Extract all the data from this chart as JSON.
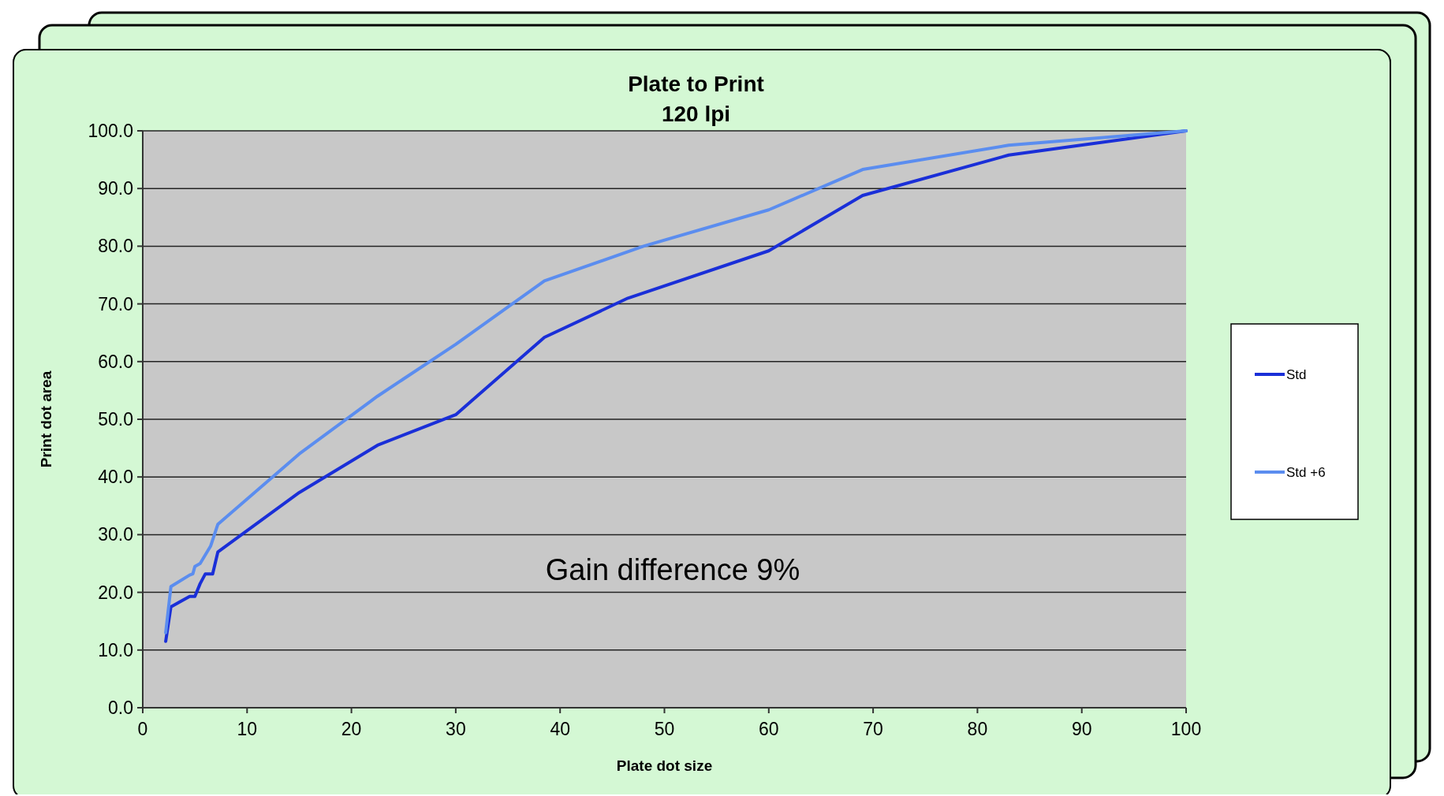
{
  "chart_data": {
    "type": "line",
    "title": "Plate to Print",
    "subtitle": "120 lpi",
    "xlabel": "Plate dot size",
    "ylabel": "Print dot area",
    "xlim": [
      0,
      100
    ],
    "xticks": [
      0,
      10,
      20,
      30,
      40,
      50,
      60,
      70,
      80,
      90,
      100
    ],
    "ylim": [
      0,
      100
    ],
    "yticks": [
      {
        "value": 0,
        "label": "0.0"
      },
      {
        "value": 10,
        "label": "10.0"
      },
      {
        "value": 20,
        "label": "20.0"
      },
      {
        "value": 30,
        "label": "30.0"
      },
      {
        "value": 40,
        "label": "40.0"
      },
      {
        "value": 50,
        "label": "50.0"
      },
      {
        "value": 60,
        "label": "60.0"
      },
      {
        "value": 70,
        "label": "70.0"
      },
      {
        "value": 80,
        "label": "80.0"
      },
      {
        "value": 90,
        "label": "90.0"
      },
      {
        "value": 100,
        "label": "100.0"
      }
    ],
    "grid": "y",
    "legend": "right",
    "marker": "none",
    "line_style": "solid",
    "annotations": [
      "Gain difference 9%"
    ],
    "series": [
      {
        "name": "Std",
        "color": "#1a2fd8",
        "x": [
          2.2,
          2.7,
          4.5,
          5,
          5.5,
          6,
          6.7,
          7.2,
          15,
          22.5,
          30,
          38.5,
          46.5,
          60,
          69,
          83,
          100
        ],
        "values": [
          11.5,
          17.5,
          19.3,
          19.3,
          21.5,
          23.2,
          23.2,
          27,
          37.3,
          45.5,
          50.8,
          64.2,
          71,
          79.2,
          88.8,
          95.8,
          100
        ]
      },
      {
        "name": "Std +6",
        "color": "#5b8def",
        "x": [
          2.2,
          2.7,
          4.5,
          4.8,
          5,
          5.5,
          6.5,
          7.2,
          15,
          22.5,
          30,
          38.5,
          48,
          60,
          69,
          83,
          100
        ],
        "values": [
          13,
          21,
          23,
          23.2,
          24.5,
          25,
          28,
          31.8,
          44,
          54,
          63,
          74,
          80,
          86.3,
          93.3,
          97.5,
          100
        ]
      }
    ]
  }
}
